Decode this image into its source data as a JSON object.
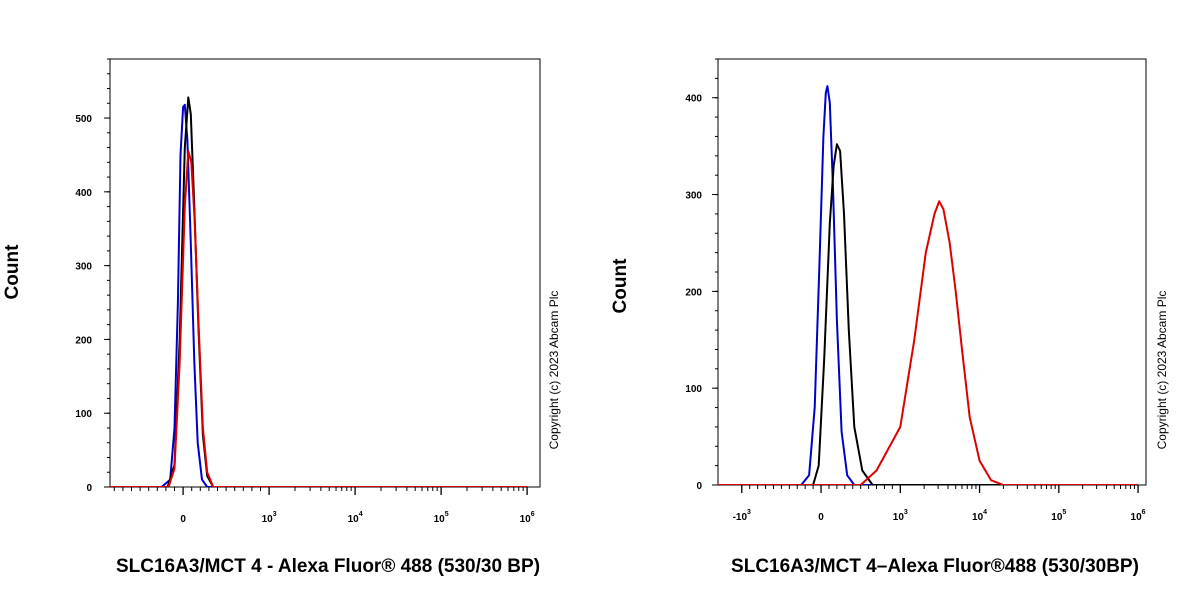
{
  "chart_data": [
    {
      "type": "line",
      "title": "",
      "xlabel": "SLC16A3/MCT 4 - Alexa Fluor® 488 (530/30 BP)",
      "ylabel": "Count",
      "copyright": "Copyright (c) 2023 Abcam Plc",
      "xscale": "biexponential",
      "ylim": [
        0,
        580
      ],
      "grid": false,
      "y_ticks": [
        "0",
        "100",
        "200",
        "300",
        "400",
        "500"
      ],
      "x_ticks": [
        {
          "base": "0",
          "exp": ""
        },
        {
          "base": "10",
          "exp": "3"
        },
        {
          "base": "10",
          "exp": "4"
        },
        {
          "base": "10",
          "exp": "5"
        },
        {
          "base": "10",
          "exp": "6"
        }
      ],
      "series": [
        {
          "color": "#0000cc",
          "points": [
            [
              -250,
              0
            ],
            [
              -150,
              10
            ],
            [
              -100,
              80
            ],
            [
              -60,
              250
            ],
            [
              -30,
              450
            ],
            [
              0,
              515
            ],
            [
              20,
              518
            ],
            [
              50,
              470
            ],
            [
              90,
              330
            ],
            [
              130,
              170
            ],
            [
              170,
              60
            ],
            [
              220,
              10
            ],
            [
              280,
              0
            ]
          ]
        },
        {
          "color": "#000000",
          "points": [
            [
              -180,
              0
            ],
            [
              -100,
              30
            ],
            [
              -40,
              200
            ],
            [
              20,
              460
            ],
            [
              60,
              528
            ],
            [
              90,
              505
            ],
            [
              130,
              380
            ],
            [
              180,
              210
            ],
            [
              230,
              70
            ],
            [
              280,
              15
            ],
            [
              350,
              0
            ]
          ]
        },
        {
          "color": "#dd0000",
          "points": [
            [
              -170,
              0
            ],
            [
              -100,
              25
            ],
            [
              -40,
              170
            ],
            [
              20,
              380
            ],
            [
              60,
              455
            ],
            [
              95,
              440
            ],
            [
              135,
              360
            ],
            [
              180,
              220
            ],
            [
              230,
              80
            ],
            [
              280,
              20
            ],
            [
              350,
              0
            ]
          ]
        }
      ]
    },
    {
      "type": "line",
      "title": "",
      "xlabel": "SLC16A3/MCT 4–Alexa Fluor®488 (530/30BP)",
      "ylabel": "Count",
      "copyright": "Copyright (c) 2023 Abcam Plc",
      "xscale": "biexponential",
      "ylim": [
        0,
        440
      ],
      "grid": false,
      "y_ticks": [
        "0",
        "100",
        "200",
        "300",
        "400"
      ],
      "x_ticks": [
        {
          "base": "-10",
          "exp": "3"
        },
        {
          "base": "0",
          "exp": ""
        },
        {
          "base": "10",
          "exp": "3"
        },
        {
          "base": "10",
          "exp": "4"
        },
        {
          "base": "10",
          "exp": "5"
        },
        {
          "base": "10",
          "exp": "6"
        }
      ],
      "series": [
        {
          "color": "#0000cc",
          "points": [
            [
              -250,
              0
            ],
            [
              -150,
              10
            ],
            [
              -80,
              80
            ],
            [
              -20,
              230
            ],
            [
              30,
              360
            ],
            [
              60,
              405
            ],
            [
              80,
              412
            ],
            [
              110,
              395
            ],
            [
              150,
              310
            ],
            [
              200,
              170
            ],
            [
              260,
              55
            ],
            [
              330,
              10
            ],
            [
              420,
              0
            ]
          ]
        },
        {
          "color": "#000000",
          "points": [
            [
              -100,
              0
            ],
            [
              -30,
              20
            ],
            [
              40,
              130
            ],
            [
              110,
              270
            ],
            [
              160,
              330
            ],
            [
              200,
              352
            ],
            [
              240,
              345
            ],
            [
              290,
              280
            ],
            [
              350,
              160
            ],
            [
              420,
              60
            ],
            [
              520,
              15
            ],
            [
              650,
              0
            ]
          ]
        },
        {
          "color": "#dd0000",
          "points": [
            [
              500,
              0
            ],
            [
              700,
              15
            ],
            [
              1000,
              60
            ],
            [
              1500,
              150
            ],
            [
              2100,
              240
            ],
            [
              2700,
              280
            ],
            [
              3100,
              293
            ],
            [
              3500,
              285
            ],
            [
              4200,
              250
            ],
            [
              5000,
              200
            ],
            [
              6000,
              140
            ],
            [
              7500,
              70
            ],
            [
              10000,
              25
            ],
            [
              14000,
              5
            ],
            [
              20000,
              0
            ]
          ]
        }
      ]
    }
  ]
}
